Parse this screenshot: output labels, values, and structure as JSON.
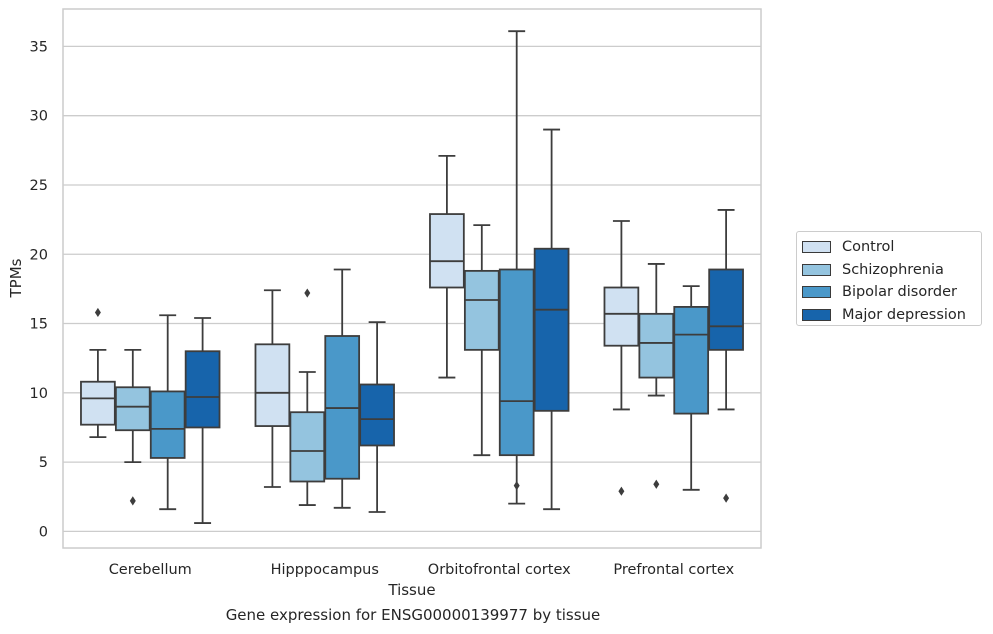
{
  "caption": "Gene expression for ENSG00000139977 by tissue",
  "chart_data": {
    "type": "box",
    "xlabel": "Tissue",
    "ylabel": "TPMs",
    "ylim": [
      -1.2,
      37.7
    ],
    "yticks": [
      0,
      5,
      10,
      15,
      20,
      25,
      30,
      35
    ],
    "grid": "horizontal",
    "legend_position": "right",
    "categories": [
      "Cerebellum",
      "Hipppocampus",
      "Orbitofrontal cortex",
      "Prefrontal cortex"
    ],
    "series": [
      {
        "name": "Control",
        "color": "#d0e1f2",
        "boxes": [
          {
            "whislo": 6.8,
            "q1": 7.7,
            "med": 9.6,
            "q3": 10.8,
            "whishi": 13.1,
            "fliers": [
              15.8
            ]
          },
          {
            "whislo": 3.2,
            "q1": 7.6,
            "med": 10.0,
            "q3": 13.5,
            "whishi": 17.4,
            "fliers": []
          },
          {
            "whislo": 11.1,
            "q1": 17.6,
            "med": 19.5,
            "q3": 22.9,
            "whishi": 27.1,
            "fliers": []
          },
          {
            "whislo": 8.8,
            "q1": 13.4,
            "med": 15.7,
            "q3": 17.6,
            "whishi": 22.4,
            "fliers": [
              2.9
            ]
          }
        ]
      },
      {
        "name": "Schizophrenia",
        "color": "#94c4df",
        "boxes": [
          {
            "whislo": 5.0,
            "q1": 7.3,
            "med": 9.0,
            "q3": 10.4,
            "whishi": 13.1,
            "fliers": [
              2.2
            ]
          },
          {
            "whislo": 1.9,
            "q1": 3.6,
            "med": 5.8,
            "q3": 8.6,
            "whishi": 11.5,
            "fliers": [
              17.2
            ]
          },
          {
            "whislo": 5.5,
            "q1": 13.1,
            "med": 16.7,
            "q3": 18.8,
            "whishi": 22.1,
            "fliers": []
          },
          {
            "whislo": 9.8,
            "q1": 11.1,
            "med": 13.6,
            "q3": 15.7,
            "whishi": 19.3,
            "fliers": [
              3.4
            ]
          }
        ]
      },
      {
        "name": "Bipolar disorder",
        "color": "#4a98c9",
        "boxes": [
          {
            "whislo": 1.6,
            "q1": 5.3,
            "med": 7.4,
            "q3": 10.1,
            "whishi": 15.6,
            "fliers": []
          },
          {
            "whislo": 1.7,
            "q1": 3.8,
            "med": 8.9,
            "q3": 14.1,
            "whishi": 18.9,
            "fliers": []
          },
          {
            "whislo": 2.0,
            "q1": 5.5,
            "med": 9.4,
            "q3": 18.9,
            "whishi": 36.1,
            "fliers": [
              3.3
            ]
          },
          {
            "whislo": 3.0,
            "q1": 8.5,
            "med": 14.2,
            "q3": 16.2,
            "whishi": 17.7,
            "fliers": []
          }
        ]
      },
      {
        "name": "Major depression",
        "color": "#1764ab",
        "boxes": [
          {
            "whislo": 0.6,
            "q1": 7.5,
            "med": 9.7,
            "q3": 13.0,
            "whishi": 15.4,
            "fliers": []
          },
          {
            "whislo": 1.4,
            "q1": 6.2,
            "med": 8.1,
            "q3": 10.6,
            "whishi": 15.1,
            "fliers": []
          },
          {
            "whislo": 1.6,
            "q1": 8.7,
            "med": 16.0,
            "q3": 20.4,
            "whishi": 29.0,
            "fliers": []
          },
          {
            "whislo": 8.8,
            "q1": 13.1,
            "med": 14.8,
            "q3": 18.9,
            "whishi": 23.2,
            "fliers": [
              2.4
            ]
          }
        ]
      }
    ]
  }
}
